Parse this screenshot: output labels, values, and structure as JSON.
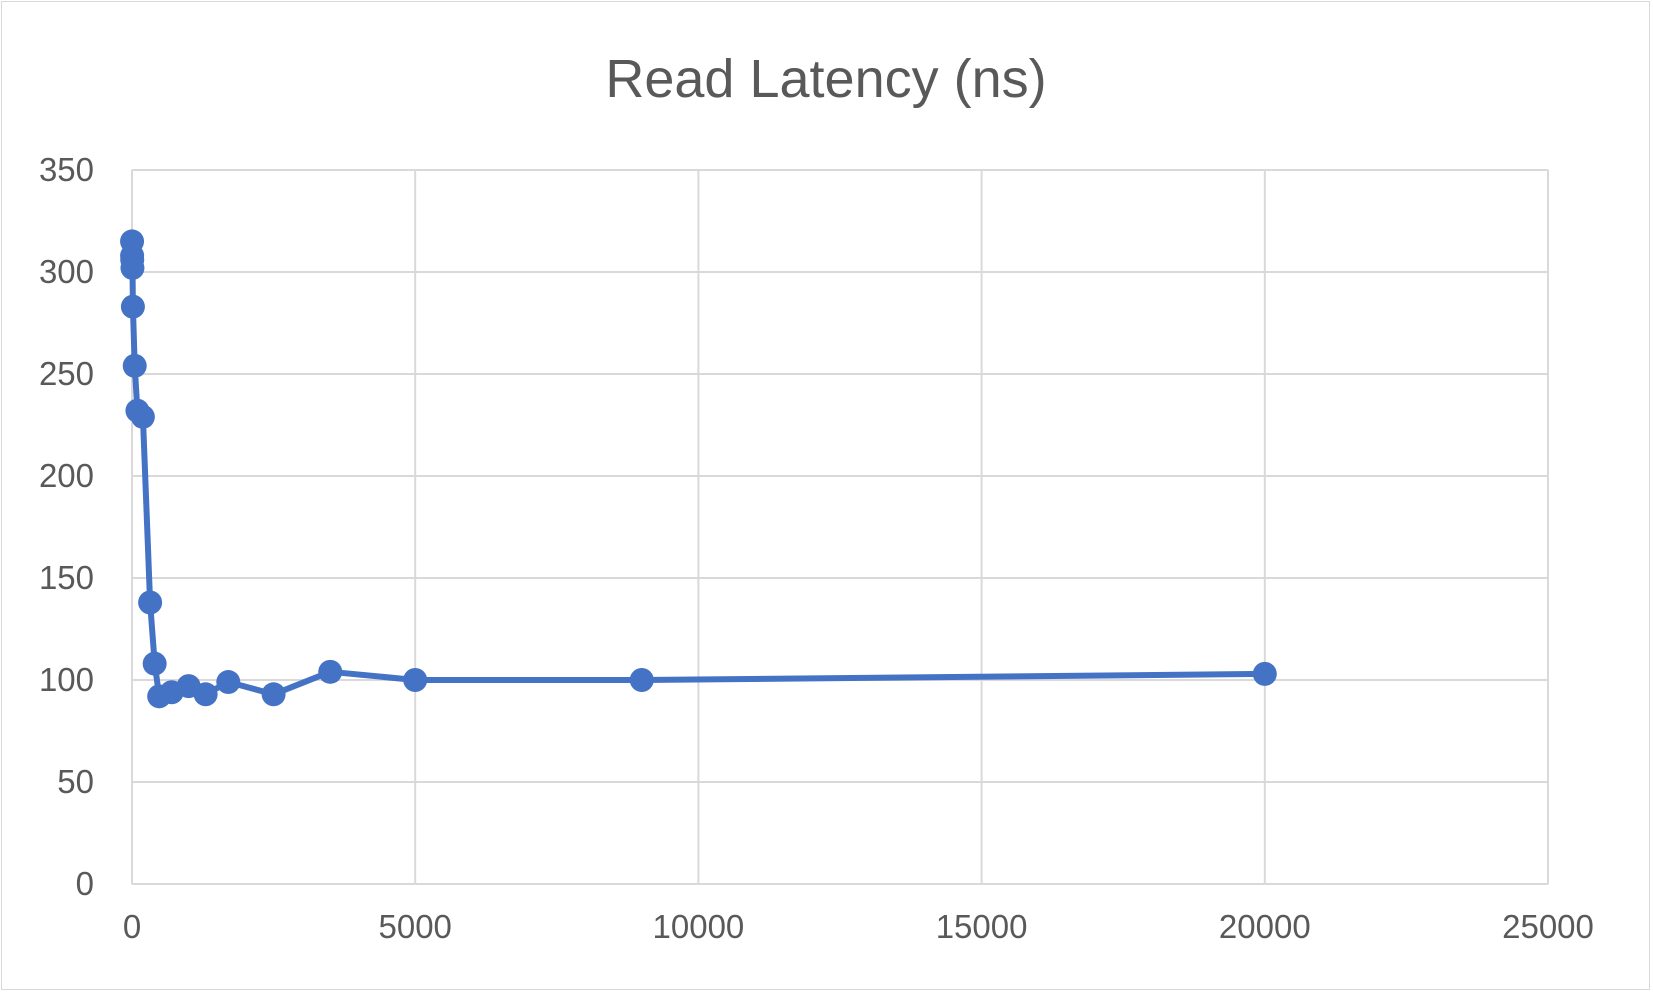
{
  "chart_data": {
    "type": "scatter",
    "title": "Read Latency (ns)",
    "xlabel": "",
    "ylabel": "",
    "xlim": [
      0,
      25000
    ],
    "ylim": [
      0,
      350
    ],
    "x_ticks": [
      "0",
      "5000",
      "10000",
      "15000",
      "20000",
      "25000"
    ],
    "y_ticks": [
      "0",
      "50",
      "100",
      "150",
      "200",
      "250",
      "300",
      "350"
    ],
    "grid": true,
    "legend": "none",
    "line_color": "#4472c4",
    "series": [
      {
        "x": [
          1,
          2,
          4,
          8,
          16,
          48,
          96,
          192,
          320,
          400,
          480,
          700,
          1000,
          1300,
          1700,
          2500,
          3500,
          5000,
          9000,
          20000
        ],
        "y": [
          315,
          308,
          306,
          302,
          283,
          254,
          232,
          229,
          138,
          108,
          92,
          94,
          97,
          93,
          99,
          93,
          104,
          100,
          100,
          103
        ]
      }
    ]
  }
}
